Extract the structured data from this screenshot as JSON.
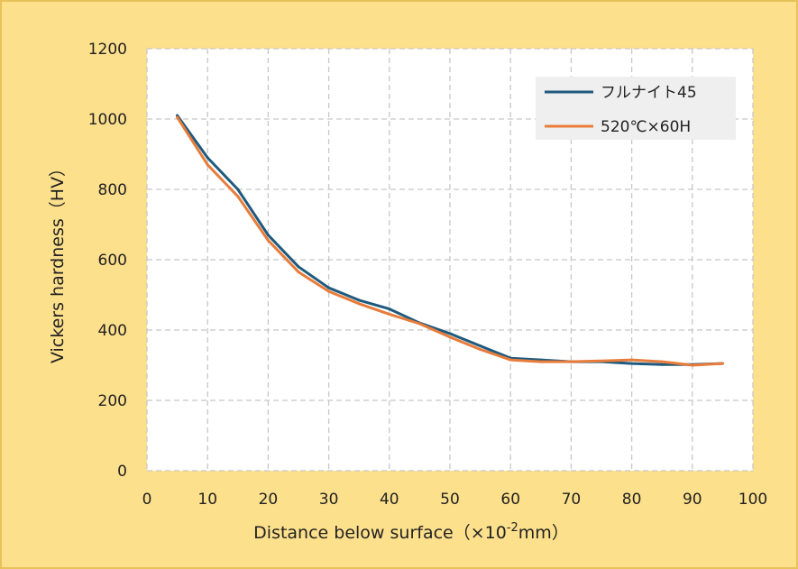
{
  "chart_data": {
    "type": "line",
    "title": "",
    "xlabel": "Distance below surface（×10",
    "xlabel_sup": "-2",
    "xlabel_suffix": "mm）",
    "ylabel": "Vickers hardness（HV）",
    "xlim": [
      0,
      100
    ],
    "ylim": [
      0,
      1200
    ],
    "xticks": [
      0,
      10,
      20,
      30,
      40,
      50,
      60,
      70,
      80,
      90,
      100
    ],
    "yticks": [
      0,
      200,
      400,
      600,
      800,
      1000,
      1200
    ],
    "grid": true,
    "legend_position": "top-right",
    "series": [
      {
        "name": "フルナイト45",
        "color": "#1f5a7e",
        "x": [
          5,
          10,
          15,
          20,
          25,
          30,
          35,
          40,
          45,
          50,
          55,
          60,
          65,
          70,
          75,
          80,
          85,
          90,
          95
        ],
        "values": [
          1010,
          890,
          800,
          670,
          580,
          520,
          485,
          460,
          420,
          390,
          355,
          320,
          315,
          310,
          310,
          305,
          302,
          302,
          305
        ]
      },
      {
        "name": "520℃×60H",
        "color": "#e87c3a",
        "x": [
          5,
          10,
          15,
          20,
          25,
          30,
          35,
          40,
          45,
          50,
          55,
          60,
          65,
          70,
          75,
          80,
          85,
          90,
          95
        ],
        "values": [
          1005,
          870,
          780,
          655,
          565,
          510,
          475,
          445,
          418,
          380,
          345,
          315,
          310,
          310,
          312,
          315,
          310,
          300,
          305
        ]
      }
    ]
  }
}
